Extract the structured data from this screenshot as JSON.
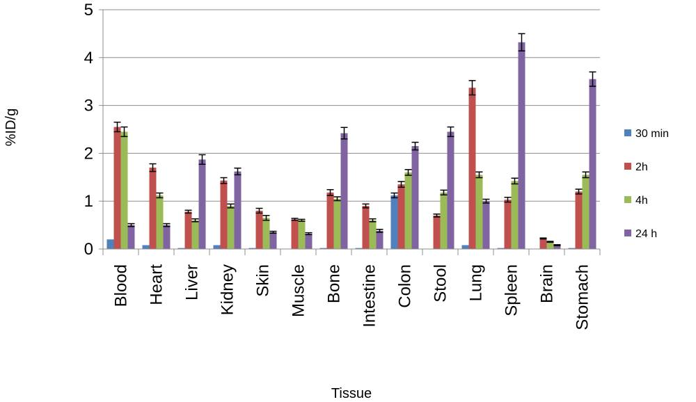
{
  "chart_data": {
    "type": "bar",
    "xlabel": "Tissue",
    "ylabel": "%ID/g",
    "ylim": [
      0,
      5
    ],
    "yticks": [
      "0",
      "1",
      "2",
      "3",
      "4",
      "5"
    ],
    "grid": true,
    "legend_position": "right",
    "categories": [
      "Blood",
      "Heart",
      "Liver",
      "Kidney",
      "Skin",
      "Muscle",
      "Bone",
      "Intestine",
      "Colon",
      "Stool",
      "Lung",
      "Spleen",
      "Brain",
      "Stomach"
    ],
    "series": [
      {
        "name": "30 min",
        "color": "#4F81BD",
        "values": [
          0.2,
          0.08,
          0.02,
          0.08,
          0.02,
          0.0,
          0.02,
          0.02,
          1.12,
          0.0,
          0.08,
          0.02,
          0.0,
          0.02
        ],
        "errors": [
          0.0,
          0.0,
          0.0,
          0.0,
          0.0,
          0.0,
          0.0,
          0.0,
          0.05,
          0.0,
          0.0,
          0.0,
          0.0,
          0.0
        ]
      },
      {
        "name": "2h",
        "color": "#C0504D",
        "values": [
          2.55,
          1.7,
          0.78,
          1.43,
          0.8,
          0.62,
          1.18,
          0.9,
          1.35,
          0.7,
          3.37,
          1.03,
          0.22,
          1.2
        ],
        "errors": [
          0.1,
          0.08,
          0.03,
          0.06,
          0.05,
          0.02,
          0.06,
          0.04,
          0.06,
          0.03,
          0.15,
          0.05,
          0.01,
          0.05
        ]
      },
      {
        "name": "4h",
        "color": "#9BBB59",
        "values": [
          2.45,
          1.12,
          0.6,
          0.9,
          0.65,
          0.6,
          1.05,
          0.6,
          1.6,
          1.18,
          1.55,
          1.42,
          0.15,
          1.55
        ],
        "errors": [
          0.1,
          0.05,
          0.03,
          0.04,
          0.05,
          0.02,
          0.04,
          0.03,
          0.06,
          0.05,
          0.06,
          0.06,
          0.01,
          0.06
        ]
      },
      {
        "name": "24 h",
        "color": "#8064A2",
        "values": [
          0.5,
          0.5,
          1.87,
          1.62,
          0.35,
          0.32,
          2.42,
          0.38,
          2.15,
          2.45,
          1.0,
          4.32,
          0.08,
          3.55
        ],
        "errors": [
          0.03,
          0.03,
          0.1,
          0.07,
          0.02,
          0.02,
          0.12,
          0.03,
          0.08,
          0.1,
          0.04,
          0.18,
          0.01,
          0.15
        ]
      }
    ]
  }
}
